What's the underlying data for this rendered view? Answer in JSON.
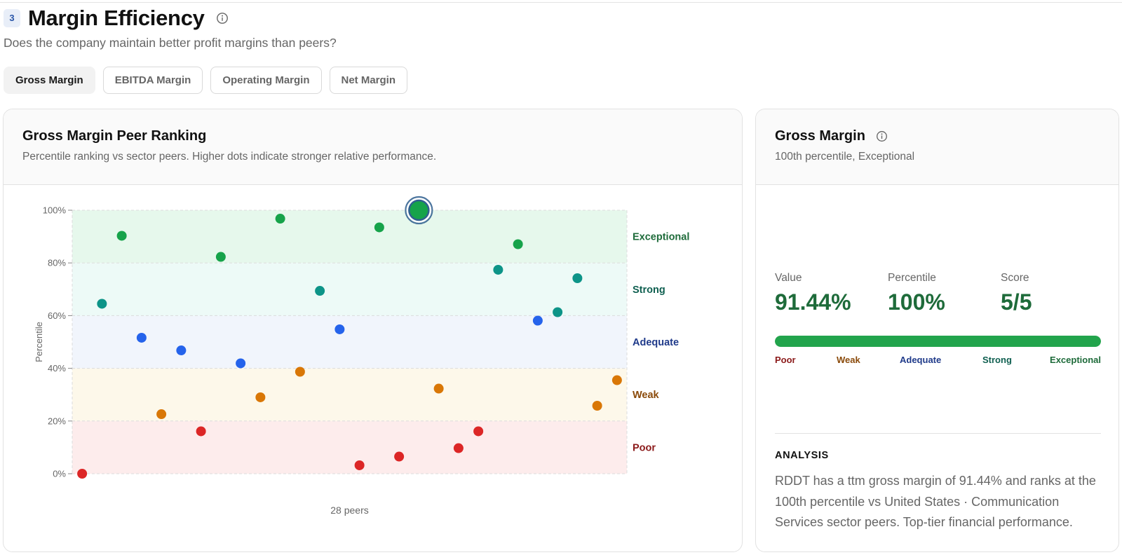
{
  "section": {
    "step": "3",
    "title": "Margin Efficiency",
    "question": "Does the company maintain better profit margins than peers?"
  },
  "tabs": [
    {
      "label": "Gross Margin",
      "active": true
    },
    {
      "label": "EBITDA Margin",
      "active": false
    },
    {
      "label": "Operating Margin",
      "active": false
    },
    {
      "label": "Net Margin",
      "active": false
    }
  ],
  "chart_card": {
    "title": "Gross Margin Peer Ranking",
    "subtitle": "Percentile ranking vs sector peers. Higher dots indicate stronger relative performance."
  },
  "chart_data": {
    "type": "scatter",
    "ylabel": "Percentile",
    "xlabel": "28 peers",
    "ylim": [
      0,
      100
    ],
    "yticks": [
      "0%",
      "20%",
      "40%",
      "60%",
      "80%",
      "100%"
    ],
    "grid": true,
    "bands": [
      {
        "name": "Poor",
        "range": [
          0,
          20
        ],
        "color": "#fdecec",
        "label_color": "#8b1a1a"
      },
      {
        "name": "Weak",
        "range": [
          20,
          40
        ],
        "color": "#fdf8ea",
        "label_color": "#8a4a0a"
      },
      {
        "name": "Adequate",
        "range": [
          40,
          60
        ],
        "color": "#f1f5fc",
        "label_color": "#1f3a8a"
      },
      {
        "name": "Strong",
        "range": [
          60,
          80
        ],
        "color": "#edfaf7",
        "label_color": "#0f5f50"
      },
      {
        "name": "Exceptional",
        "range": [
          80,
          100
        ],
        "color": "#e6f8ec",
        "label_color": "#1e6b3a"
      }
    ],
    "points": [
      {
        "x": 1,
        "y": 0,
        "tier": "Poor"
      },
      {
        "x": 2,
        "y": 64.5,
        "tier": "Strong"
      },
      {
        "x": 3,
        "y": 90.3,
        "tier": "Exceptional"
      },
      {
        "x": 4,
        "y": 51.6,
        "tier": "Adequate"
      },
      {
        "x": 5,
        "y": 22.6,
        "tier": "Weak"
      },
      {
        "x": 6,
        "y": 46.8,
        "tier": "Adequate"
      },
      {
        "x": 7,
        "y": 16.1,
        "tier": "Poor"
      },
      {
        "x": 8,
        "y": 82.3,
        "tier": "Exceptional"
      },
      {
        "x": 9,
        "y": 41.9,
        "tier": "Adequate"
      },
      {
        "x": 10,
        "y": 29.0,
        "tier": "Weak"
      },
      {
        "x": 11,
        "y": 96.8,
        "tier": "Exceptional"
      },
      {
        "x": 12,
        "y": 38.7,
        "tier": "Weak"
      },
      {
        "x": 13,
        "y": 69.4,
        "tier": "Strong"
      },
      {
        "x": 14,
        "y": 54.8,
        "tier": "Adequate"
      },
      {
        "x": 15,
        "y": 3.2,
        "tier": "Poor"
      },
      {
        "x": 16,
        "y": 93.5,
        "tier": "Exceptional"
      },
      {
        "x": 17,
        "y": 6.5,
        "tier": "Poor"
      },
      {
        "x": 18,
        "y": 100,
        "tier": "Exceptional",
        "highlight": true
      },
      {
        "x": 19,
        "y": 32.3,
        "tier": "Weak"
      },
      {
        "x": 20,
        "y": 9.7,
        "tier": "Poor"
      },
      {
        "x": 21,
        "y": 16.1,
        "tier": "Poor"
      },
      {
        "x": 22,
        "y": 77.4,
        "tier": "Strong"
      },
      {
        "x": 23,
        "y": 87.1,
        "tier": "Exceptional"
      },
      {
        "x": 24,
        "y": 58.1,
        "tier": "Adequate"
      },
      {
        "x": 25,
        "y": 61.3,
        "tier": "Strong"
      },
      {
        "x": 26,
        "y": 74.2,
        "tier": "Strong"
      },
      {
        "x": 27,
        "y": 25.8,
        "tier": "Weak"
      },
      {
        "x": 28,
        "y": 35.5,
        "tier": "Weak"
      }
    ],
    "tier_colors": {
      "Poor": "#dc2626",
      "Weak": "#d97706",
      "Adequate": "#2563eb",
      "Strong": "#0d9488",
      "Exceptional": "#16a34a"
    },
    "highlight_ring_color": "#2f5f8f"
  },
  "metric_card": {
    "title": "Gross Margin",
    "subtitle": "100th percentile, Exceptional",
    "value_label": "Value",
    "value": "91.44%",
    "percentile_label": "Percentile",
    "percentile": "100%",
    "score_label": "Score",
    "score": "5/5",
    "bar_fill_fraction": 1.0,
    "scale": [
      "Poor",
      "Weak",
      "Adequate",
      "Strong",
      "Exceptional"
    ],
    "analysis_title": "ANALYSIS",
    "analysis_text": "RDDT has a ttm gross margin of 91.44% and ranks at the 100th percentile vs United States · Communication Services sector peers. Top-tier financial performance."
  }
}
